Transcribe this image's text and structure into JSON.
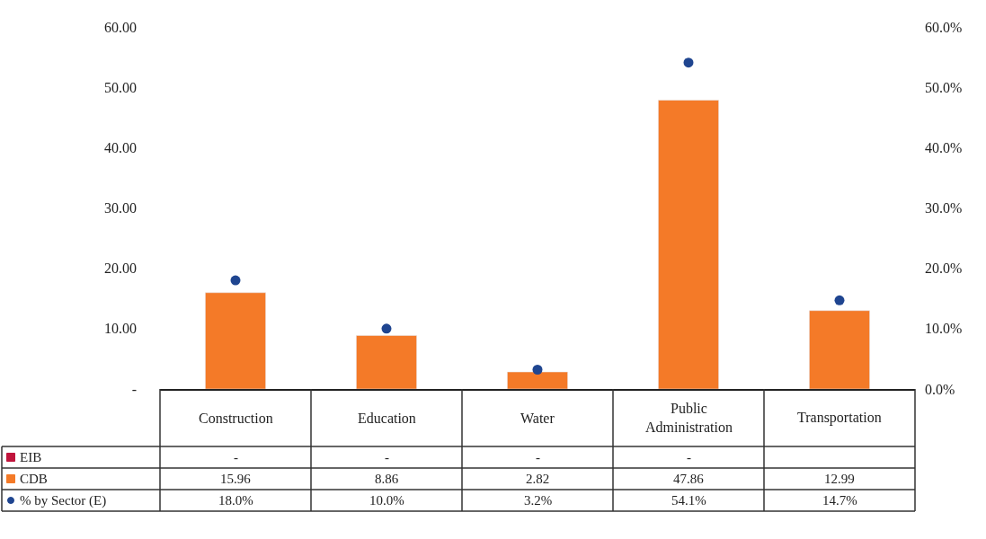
{
  "chart_data": {
    "type": "bar",
    "categories": [
      "Construction",
      "Education",
      "Water",
      "Public Administration",
      "Transportation"
    ],
    "series": [
      {
        "name": "EIB",
        "color": "#c0143c",
        "values": [
          null,
          null,
          null,
          null,
          null
        ],
        "value_labels": [
          "-",
          "-",
          "-",
          "-",
          null
        ]
      },
      {
        "name": "CDB",
        "color": "#f47a28",
        "values": [
          15.96,
          8.86,
          2.82,
          47.86,
          12.99
        ],
        "value_labels": [
          "15.96",
          "8.86",
          "2.82",
          "47.86",
          "12.99"
        ]
      },
      {
        "name": "% by Sector (E)",
        "type": "scatter",
        "axis": "y2",
        "color": "#1f4590",
        "marker": "circle",
        "values": [
          18.0,
          10.0,
          3.2,
          54.1,
          14.7
        ],
        "value_labels": [
          "18.0%",
          "10.0%",
          "3.2%",
          "54.1%",
          "14.7%"
        ]
      }
    ],
    "ylim": [
      0,
      60
    ],
    "yticks": [
      {
        "value": 0,
        "label": "-"
      },
      {
        "value": 10,
        "label": "10.00"
      },
      {
        "value": 20,
        "label": "20.00"
      },
      {
        "value": 30,
        "label": "30.00"
      },
      {
        "value": 40,
        "label": "40.00"
      },
      {
        "value": 50,
        "label": "50.00"
      },
      {
        "value": 60,
        "label": "60.00"
      }
    ],
    "y2lim": [
      0,
      60
    ],
    "y2ticks": [
      {
        "value": 0,
        "label": "0.0%"
      },
      {
        "value": 10,
        "label": "10.0%"
      },
      {
        "value": 20,
        "label": "20.0%"
      },
      {
        "value": 30,
        "label": "30.0%"
      },
      {
        "value": 40,
        "label": "40.0%"
      },
      {
        "value": 50,
        "label": "50.0%"
      },
      {
        "value": 60,
        "label": "60.0%"
      }
    ],
    "grid": false,
    "legend": "bottom left"
  }
}
